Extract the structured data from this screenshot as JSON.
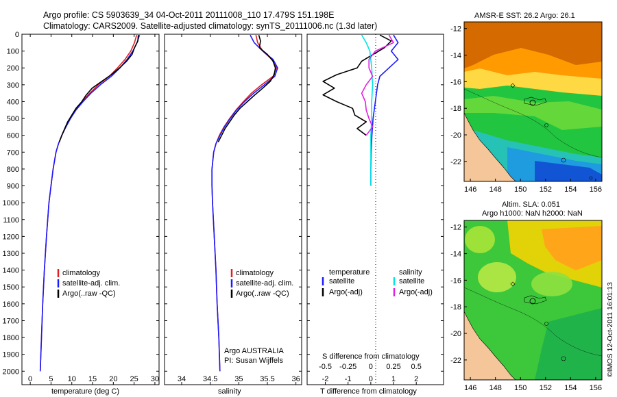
{
  "header": {
    "line1": "Argo profile: CS 5903639_34 04-Oct-2011 20111008_110 17.479S 151.198E",
    "line2": "Climatology: CARS2009. Satellite-adjusted climatology: synTS_20111006.nc (1.3d later)"
  },
  "colors": {
    "climatology": "#e02020",
    "satellite": "#1a1aff",
    "argo": "#000000",
    "sal_satellite": "#00e5e5",
    "sal_argo": "#e020e0",
    "land": "#f5c69a"
  },
  "credit": "©IMOS 12-Oct-2011 16:01:13",
  "chart_data": [
    {
      "id": "temperature",
      "type": "line",
      "xlabel": "temperature (deg C)",
      "ylabel": "",
      "xlim": [
        -2,
        31
      ],
      "ylim": [
        2080,
        0
      ],
      "xticks": [
        "0",
        "5",
        "10",
        "15",
        "20",
        "25",
        "30"
      ],
      "yticks": [
        "0",
        "100",
        "200",
        "300",
        "400",
        "500",
        "600",
        "700",
        "800",
        "900",
        "1000",
        "1100",
        "1200",
        "1300",
        "1400",
        "1500",
        "1600",
        "1700",
        "1800",
        "1900",
        "2000"
      ],
      "legend": [
        "climatology",
        "satellite-adj. clim.",
        "Argo(..raw -QC)"
      ],
      "series": [
        {
          "name": "climatology",
          "depth": [
            5,
            50,
            100,
            150,
            200,
            250,
            300,
            350,
            400,
            450,
            500,
            550,
            600,
            650,
            700,
            800,
            900,
            1000,
            1200,
            1400,
            1600,
            1800,
            2000
          ],
          "values": [
            25.6,
            25.1,
            24.2,
            22.8,
            21.0,
            19.0,
            16.4,
            14.3,
            12.5,
            10.9,
            9.6,
            8.5,
            7.6,
            6.8,
            6.2,
            5.5,
            5.0,
            4.5,
            3.9,
            3.4,
            3.0,
            2.7,
            2.4
          ]
        },
        {
          "name": "satellite-adj. clim.",
          "depth": [
            5,
            50,
            100,
            150,
            200,
            250,
            300,
            350,
            400,
            450,
            500,
            550,
            600,
            650,
            700,
            800,
            900,
            1000,
            1200,
            1400,
            1600,
            1800,
            2000
          ],
          "values": [
            26.3,
            25.7,
            24.7,
            23.3,
            21.6,
            19.5,
            16.9,
            14.6,
            12.7,
            11.0,
            9.7,
            8.6,
            7.6,
            6.8,
            6.2,
            5.5,
            5.0,
            4.5,
            3.9,
            3.4,
            3.0,
            2.7,
            2.4
          ]
        },
        {
          "name": "Argo(..raw -QC)",
          "depth": [
            5,
            40,
            80,
            120,
            160,
            200,
            240,
            280,
            320,
            360,
            400,
            440,
            480,
            520,
            560,
            600,
            640
          ],
          "values": [
            26.0,
            25.9,
            25.1,
            24.5,
            23.2,
            21.5,
            19.5,
            17.2,
            14.9,
            13.5,
            12.4,
            11.0,
            10.0,
            9.0,
            8.3,
            7.6,
            7.0
          ]
        }
      ]
    },
    {
      "id": "salinity",
      "type": "line",
      "xlabel": "salinity",
      "ylabel": "",
      "xlim": [
        33.7,
        36.1
      ],
      "ylim": [
        2080,
        0
      ],
      "xticks": [
        "34",
        "34.5",
        "35",
        "35.5",
        "36"
      ],
      "legend": [
        "climatology",
        "satellite-adj. clim.",
        "Argo(..raw -QC)"
      ],
      "annotation": [
        "Argo AUSTRALIA",
        "PI: Susan Wijffels"
      ],
      "series": [
        {
          "name": "climatology",
          "depth": [
            5,
            50,
            100,
            150,
            200,
            250,
            300,
            350,
            400,
            450,
            500,
            550,
            600,
            650,
            700,
            800,
            900,
            1000,
            1200,
            1400,
            1600,
            1800,
            2000
          ],
          "values": [
            35.3,
            35.33,
            35.42,
            35.58,
            35.66,
            35.6,
            35.4,
            35.22,
            35.08,
            34.95,
            34.84,
            34.74,
            34.66,
            34.6,
            34.56,
            34.53,
            34.53,
            34.54,
            34.57,
            34.6,
            34.62,
            34.65,
            34.67
          ]
        },
        {
          "name": "satellite-adj. clim.",
          "depth": [
            5,
            50,
            100,
            150,
            200,
            250,
            300,
            350,
            400,
            450,
            500,
            550,
            600,
            650,
            700,
            800,
            900,
            1000,
            1200,
            1400,
            1600,
            1800,
            2000
          ],
          "values": [
            35.2,
            35.27,
            35.42,
            35.6,
            35.68,
            35.63,
            35.45,
            35.26,
            35.1,
            34.96,
            34.85,
            34.75,
            34.67,
            34.6,
            34.56,
            34.53,
            34.53,
            34.54,
            34.57,
            34.6,
            34.62,
            34.65,
            34.67
          ]
        },
        {
          "name": "Argo(..raw -QC)",
          "depth": [
            5,
            40,
            80,
            120,
            160,
            200,
            240,
            280,
            320,
            360,
            400,
            440,
            480,
            520,
            560,
            600,
            640
          ],
          "values": [
            35.35,
            35.38,
            35.36,
            35.5,
            35.6,
            35.64,
            35.62,
            35.55,
            35.42,
            35.28,
            35.15,
            35.02,
            34.92,
            34.84,
            34.76,
            34.7,
            34.64
          ]
        }
      ]
    },
    {
      "id": "difference",
      "type": "line",
      "xlabel": "T difference from climatology",
      "xlabel_top": "S difference from climatology",
      "xlim": [
        -2.8,
        3.2
      ],
      "ylim": [
        2080,
        0
      ],
      "xticks_T": [
        "-2",
        "-1",
        "0",
        "1",
        "2"
      ],
      "xticks_S": [
        "-0.5",
        "-0.25",
        "0",
        "0.25",
        "0.5"
      ],
      "legend_T_title": "temperature",
      "legend_S_title": "salinity",
      "legend_T": [
        "satellite",
        "Argo(-adj)"
      ],
      "legend_S": [
        "satellite",
        "Argo(-adj)"
      ],
      "series": [
        {
          "name": "T satellite",
          "depth": [
            5,
            50,
            100,
            150,
            200,
            250,
            300,
            400,
            500,
            600,
            700,
            800,
            900
          ],
          "values": [
            1.0,
            1.2,
            0.9,
            1.2,
            0.8,
            0.4,
            0.3,
            0.2,
            0.1,
            0.05,
            0.02,
            0.0,
            0.0
          ]
        },
        {
          "name": "T Argo(-adj)",
          "depth": [
            5,
            40,
            80,
            120,
            160,
            200,
            240,
            280,
            320,
            360,
            400,
            440,
            480,
            520,
            560,
            600
          ],
          "values": [
            0.4,
            0.9,
            0.6,
            0.1,
            -0.4,
            -0.6,
            -1.5,
            -2.1,
            -1.6,
            -2.1,
            -1.5,
            -0.8,
            -0.7,
            -0.2,
            -0.6,
            -0.2
          ]
        },
        {
          "name": "S satellite",
          "depth": [
            5,
            50,
            100,
            200,
            300,
            400,
            500,
            600,
            700,
            800,
            900
          ],
          "values": [
            -0.1,
            -0.05,
            -0.01,
            0.01,
            0.02,
            0.01,
            0.01,
            0.0,
            0.0,
            0.0,
            0.0
          ]
        },
        {
          "name": "S Argo(-adj)",
          "depth": [
            5,
            50,
            100,
            150,
            200,
            250,
            300,
            350,
            400,
            450,
            500,
            550,
            600
          ],
          "values": [
            0.2,
            0.25,
            0.05,
            -0.02,
            -0.02,
            0.02,
            -0.05,
            -0.1,
            -0.06,
            -0.05,
            -0.02,
            0.02,
            -0.05
          ]
        }
      ]
    },
    {
      "id": "sst-map",
      "type": "heatmap",
      "title": "AMSR-E SST: 26.2 Argo: 26.1",
      "xticks": [
        "146",
        "148",
        "150",
        "152",
        "154",
        "156"
      ],
      "yticks": [
        "-12",
        "-14",
        "-16",
        "-18",
        "-20",
        "-22"
      ],
      "xlim": [
        145.5,
        156.5
      ],
      "ylim": [
        -23.5,
        -11.5
      ]
    },
    {
      "id": "sla-map",
      "type": "heatmap",
      "title_line1": "Altim. SLA: 0.051",
      "title_line2": "Argo h1000: NaN h2000: NaN",
      "xticks": [
        "146",
        "148",
        "150",
        "152",
        "154",
        "156"
      ],
      "yticks": [
        "-12",
        "-14",
        "-16",
        "-18",
        "-20",
        "-22"
      ],
      "xlim": [
        145.5,
        156.5
      ],
      "ylim": [
        -23.5,
        -11.5
      ]
    }
  ]
}
